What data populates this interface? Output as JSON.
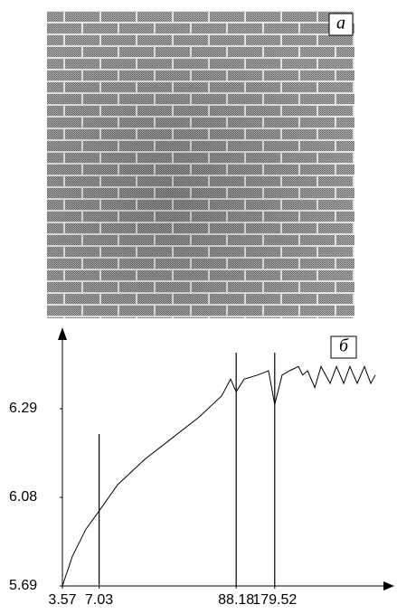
{
  "image_panel": {
    "label": "а"
  },
  "chart_data": {
    "type": "line",
    "label": "б",
    "x": [
      3.57,
      4.29,
      5.51,
      7.03,
      9.89,
      16.3,
      26.9,
      44.4,
      67.3,
      79.6,
      88.18,
      102,
      131,
      160,
      179.52,
      206,
      236,
      278,
      300,
      329,
      376,
      422,
      499,
      561,
      640,
      719,
      822,
      940,
      1057,
      1148
    ],
    "series": [
      {
        "color": "#000000",
        "values": [
          5.69,
          5.82,
          5.94,
          6.02,
          6.11,
          6.17,
          6.22,
          6.27,
          6.32,
          6.36,
          6.33,
          6.36,
          6.37,
          6.38,
          6.3,
          6.37,
          6.38,
          6.39,
          6.37,
          6.38,
          6.34,
          6.39,
          6.35,
          6.39,
          6.35,
          6.39,
          6.35,
          6.39,
          6.35,
          6.37
        ]
      }
    ],
    "xlim": [
      3.57,
      1500
    ],
    "xscale": "log",
    "xticks": [
      3.57,
      7.03,
      88.18,
      179.52
    ],
    "ylim": [
      5.69,
      6.47
    ],
    "yticks": [
      5.69,
      6.08,
      6.29
    ],
    "markers_x": [
      7.03,
      88.18,
      179.52
    ],
    "grid": false
  }
}
